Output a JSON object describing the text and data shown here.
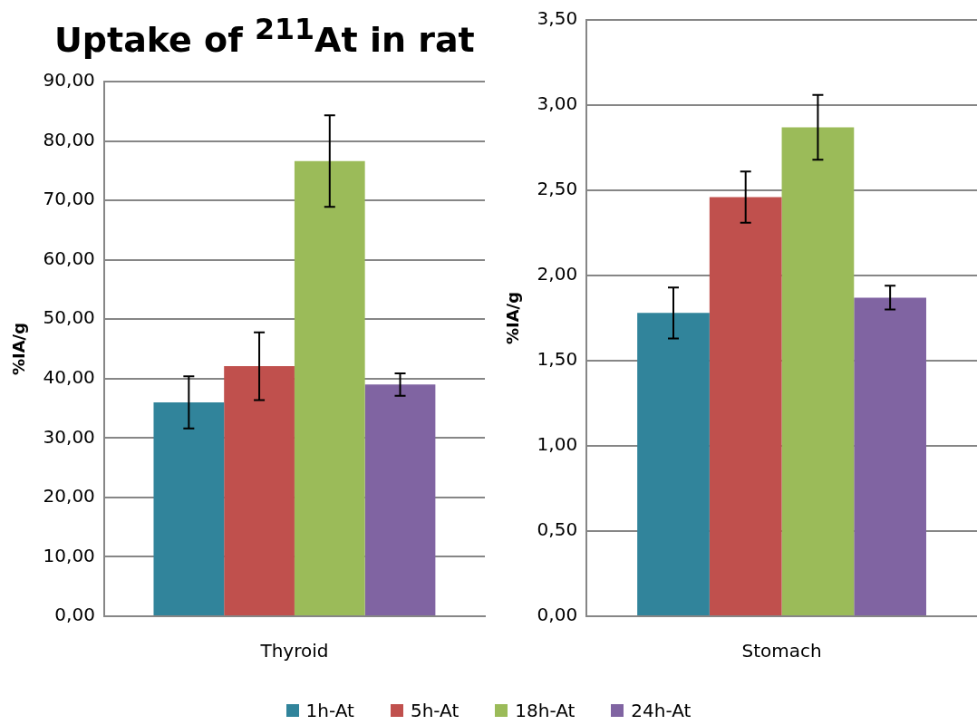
{
  "chart_data": [
    {
      "type": "bar",
      "title": "Uptake of $^{211}$At in rat",
      "ylabel": "%IA/g",
      "categories": [
        "Thyroid"
      ],
      "series": [
        {
          "name": "1h-At",
          "color": "#31849b",
          "values": [
            36.0
          ],
          "errors": [
            4.4
          ]
        },
        {
          "name": "5h-At",
          "color": "#c0504d",
          "values": [
            42.1
          ],
          "errors": [
            5.7
          ]
        },
        {
          "name": "18h-At",
          "color": "#9bbb59",
          "values": [
            76.6
          ],
          "errors": [
            7.7
          ]
        },
        {
          "name": "24h-At",
          "color": "#8064a2",
          "values": [
            39.0
          ],
          "errors": [
            1.9
          ]
        }
      ],
      "ylim": [
        0,
        90
      ],
      "yticks": [
        {
          "value": 0,
          "label": "0,00"
        },
        {
          "value": 10,
          "label": "10,00"
        },
        {
          "value": 20,
          "label": "20,00"
        },
        {
          "value": 30,
          "label": "30,00"
        },
        {
          "value": 40,
          "label": "40,00"
        },
        {
          "value": 50,
          "label": "50,00"
        },
        {
          "value": 60,
          "label": "60,00"
        },
        {
          "value": 70,
          "label": "70,00"
        },
        {
          "value": 80,
          "label": "80,00"
        },
        {
          "value": 90,
          "label": "90,00"
        }
      ],
      "grid": "y",
      "legend": "bottom"
    },
    {
      "type": "bar",
      "ylabel": "%IA/g",
      "categories": [
        "Stomach"
      ],
      "series": [
        {
          "name": "1h-At",
          "color": "#31849b",
          "values": [
            1.78
          ],
          "errors": [
            0.15
          ]
        },
        {
          "name": "5h-At",
          "color": "#c0504d",
          "values": [
            2.46
          ],
          "errors": [
            0.15
          ]
        },
        {
          "name": "18h-At",
          "color": "#9bbb59",
          "values": [
            2.87
          ],
          "errors": [
            0.19
          ]
        },
        {
          "name": "24h-At",
          "color": "#8064a2",
          "values": [
            1.87
          ],
          "errors": [
            0.07
          ]
        }
      ],
      "ylim": [
        0,
        3.5
      ],
      "yticks": [
        {
          "value": 0,
          "label": "0,00"
        },
        {
          "value": 0.5,
          "label": "0,50"
        },
        {
          "value": 1,
          "label": "1,00"
        },
        {
          "value": 1.5,
          "label": "1,50"
        },
        {
          "value": 2,
          "label": "2,00"
        },
        {
          "value": 2.5,
          "label": "2,50"
        },
        {
          "value": 3,
          "label": "3,00"
        },
        {
          "value": 3.5,
          "label": "3,50"
        }
      ],
      "grid": "y",
      "legend": "bottom"
    }
  ]
}
